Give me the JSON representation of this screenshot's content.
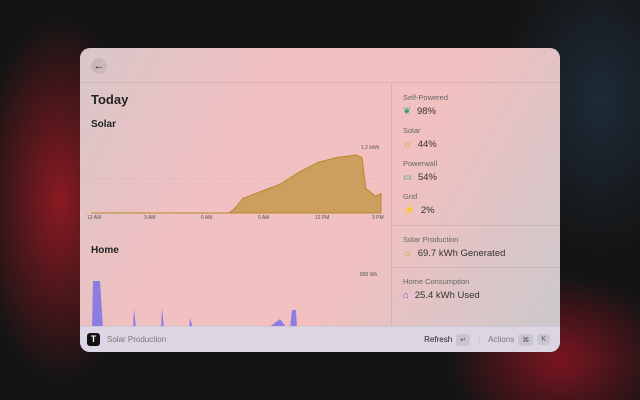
{
  "header": {
    "back_icon": "arrow-left-icon"
  },
  "title": "Today",
  "solar_chart": {
    "title": "Solar",
    "max_label": "1.2 kWh",
    "ticks": [
      "12 AM",
      "3 AM",
      "6 AM",
      "9 AM",
      "12 PM",
      "3 PM"
    ],
    "color": "#cc9f5e"
  },
  "home_chart": {
    "title": "Home",
    "max_label": "855 Wh",
    "color": "#8c7ee0"
  },
  "chart_data": [
    {
      "type": "area",
      "title": "Solar",
      "x": [
        0,
        7.3,
        7.6,
        8,
        9,
        10,
        11,
        12,
        13,
        14,
        14.3,
        14.5,
        14.7,
        15,
        15.3
      ],
      "y": [
        0,
        0,
        0.1,
        0.3,
        0.45,
        0.6,
        0.85,
        1.05,
        1.15,
        1.2,
        1.15,
        0.5,
        0.45,
        0.35,
        0.4
      ],
      "xlabel": "",
      "ylabel": "kWh",
      "ylim": [
        0,
        1.2
      ]
    },
    {
      "type": "area",
      "title": "Home",
      "ylim": [
        0,
        855
      ]
    }
  ],
  "stats": [
    {
      "label": "Self-Powered",
      "value": "98%",
      "icon": "leaf-icon",
      "color": "#2a9d7a"
    },
    {
      "label": "Solar",
      "value": "44%",
      "icon": "sun-icon",
      "color": "#c49a2c"
    },
    {
      "label": "Powerwall",
      "value": "54%",
      "icon": "battery-icon",
      "color": "#2a9d8a"
    },
    {
      "label": "Grid",
      "value": "2%",
      "icon": "plug-icon",
      "color": "#555"
    }
  ],
  "solar_production": {
    "label": "Solar Production",
    "value": "69.7 kWh Generated"
  },
  "home_consumption": {
    "label": "Home Consumption",
    "value": "25.4 kWh Used"
  },
  "footer": {
    "title": "Solar Production",
    "refresh": "Refresh",
    "refresh_key": "↵",
    "actions": "Actions",
    "cmd_key": "⌘",
    "k_key": "K",
    "logo": "T"
  }
}
